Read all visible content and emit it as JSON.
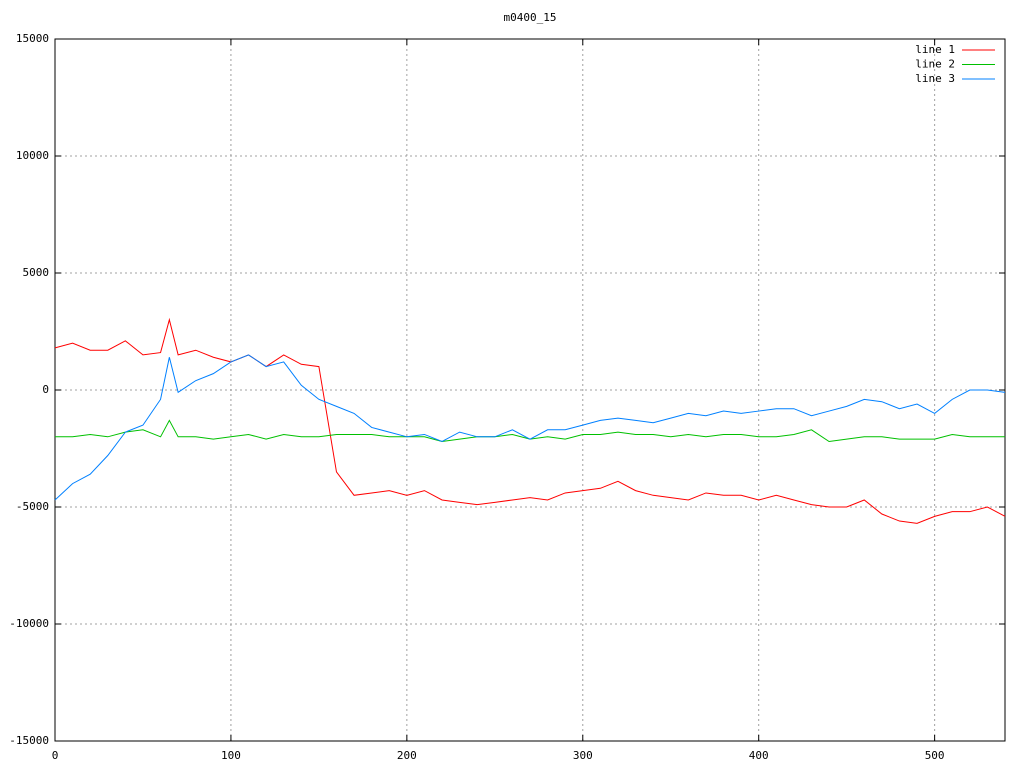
{
  "chart_data": {
    "type": "line",
    "title": "m0400_15",
    "x": [
      0,
      10,
      20,
      30,
      40,
      50,
      60,
      65,
      70,
      80,
      90,
      100,
      110,
      120,
      130,
      140,
      150,
      160,
      170,
      180,
      190,
      200,
      210,
      220,
      230,
      240,
      250,
      260,
      270,
      280,
      290,
      300,
      310,
      320,
      330,
      340,
      350,
      360,
      370,
      380,
      390,
      400,
      410,
      420,
      430,
      440,
      450,
      460,
      470,
      480,
      490,
      500,
      510,
      520,
      530,
      540
    ],
    "series": [
      {
        "name": "line 1",
        "color": "#ff0000",
        "values": [
          1800,
          2000,
          1700,
          1700,
          2100,
          1500,
          1600,
          3000,
          1500,
          1700,
          1400,
          1200,
          1500,
          1000,
          1500,
          1100,
          1000,
          -3500,
          -4500,
          -4400,
          -4300,
          -4500,
          -4300,
          -4700,
          -4800,
          -4900,
          -4800,
          -4700,
          -4600,
          -4700,
          -4400,
          -4300,
          -4200,
          -3900,
          -4300,
          -4500,
          -4600,
          -4700,
          -4400,
          -4500,
          -4500,
          -4700,
          -4500,
          -4700,
          -4900,
          -5000,
          -5000,
          -4700,
          -5300,
          -5600,
          -5700,
          -5400,
          -5200,
          -5200,
          -5000,
          -5400
        ]
      },
      {
        "name": "line 2",
        "color": "#00c000",
        "values": [
          -2000,
          -2000,
          -1900,
          -2000,
          -1800,
          -1700,
          -2000,
          -1300,
          -2000,
          -2000,
          -2100,
          -2000,
          -1900,
          -2100,
          -1900,
          -2000,
          -2000,
          -1900,
          -1900,
          -1900,
          -2000,
          -2000,
          -2000,
          -2200,
          -2100,
          -2000,
          -2000,
          -1900,
          -2100,
          -2000,
          -2100,
          -1900,
          -1900,
          -1800,
          -1900,
          -1900,
          -2000,
          -1900,
          -2000,
          -1900,
          -1900,
          -2000,
          -2000,
          -1900,
          -1700,
          -2200,
          -2100,
          -2000,
          -2000,
          -2100,
          -2100,
          -2100,
          -1900,
          -2000,
          -2000,
          -2000
        ]
      },
      {
        "name": "line 3",
        "color": "#0080ff",
        "values": [
          -4700,
          -4000,
          -3600,
          -2800,
          -1800,
          -1500,
          -400,
          1400,
          -100,
          400,
          700,
          1200,
          1500,
          1000,
          1200,
          200,
          -400,
          -700,
          -1000,
          -1600,
          -1800,
          -2000,
          -1900,
          -2200,
          -1800,
          -2000,
          -2000,
          -1700,
          -2100,
          -1700,
          -1700,
          -1500,
          -1300,
          -1200,
          -1300,
          -1400,
          -1200,
          -1000,
          -1100,
          -900,
          -1000,
          -900,
          -800,
          -800,
          -1100,
          -900,
          -700,
          -400,
          -500,
          -800,
          -600,
          -1000,
          -400,
          0,
          0,
          -100
        ]
      }
    ],
    "xlim": [
      0,
      540
    ],
    "xticks": [
      0,
      100,
      200,
      300,
      400,
      500
    ],
    "ylim": [
      -15000,
      15000
    ],
    "yticks": [
      -15000,
      -10000,
      -5000,
      0,
      5000,
      10000,
      15000
    ],
    "grid": true,
    "legend": "top-right"
  }
}
